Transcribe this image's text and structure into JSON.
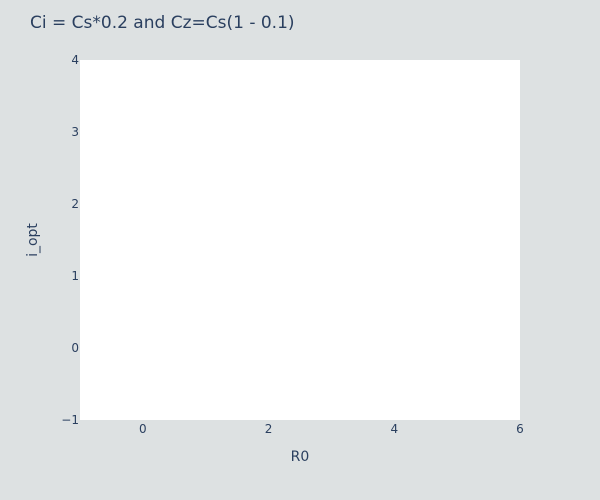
{
  "chart_data": {
    "type": "line",
    "title": "Ci = Cs*0.2 and Cz=Cs(1 - 0.1)",
    "xlabel": "R0",
    "ylabel": "i_opt",
    "xlim": [
      -1,
      6
    ],
    "ylim": [
      -1,
      4
    ],
    "x_ticks": [
      0,
      2,
      4,
      6
    ],
    "y_ticks": [
      -1,
      0,
      1,
      2,
      3,
      4
    ],
    "x_tick_labels": [
      "0",
      "2",
      "4",
      "6"
    ],
    "y_tick_labels": [
      "−1",
      "0",
      "1",
      "2",
      "3",
      "4"
    ],
    "grid": false,
    "series": []
  },
  "colors": {
    "paper_bg": "#dde1e2",
    "plot_bg": "#ffffff",
    "text": "#2a3f5f"
  }
}
